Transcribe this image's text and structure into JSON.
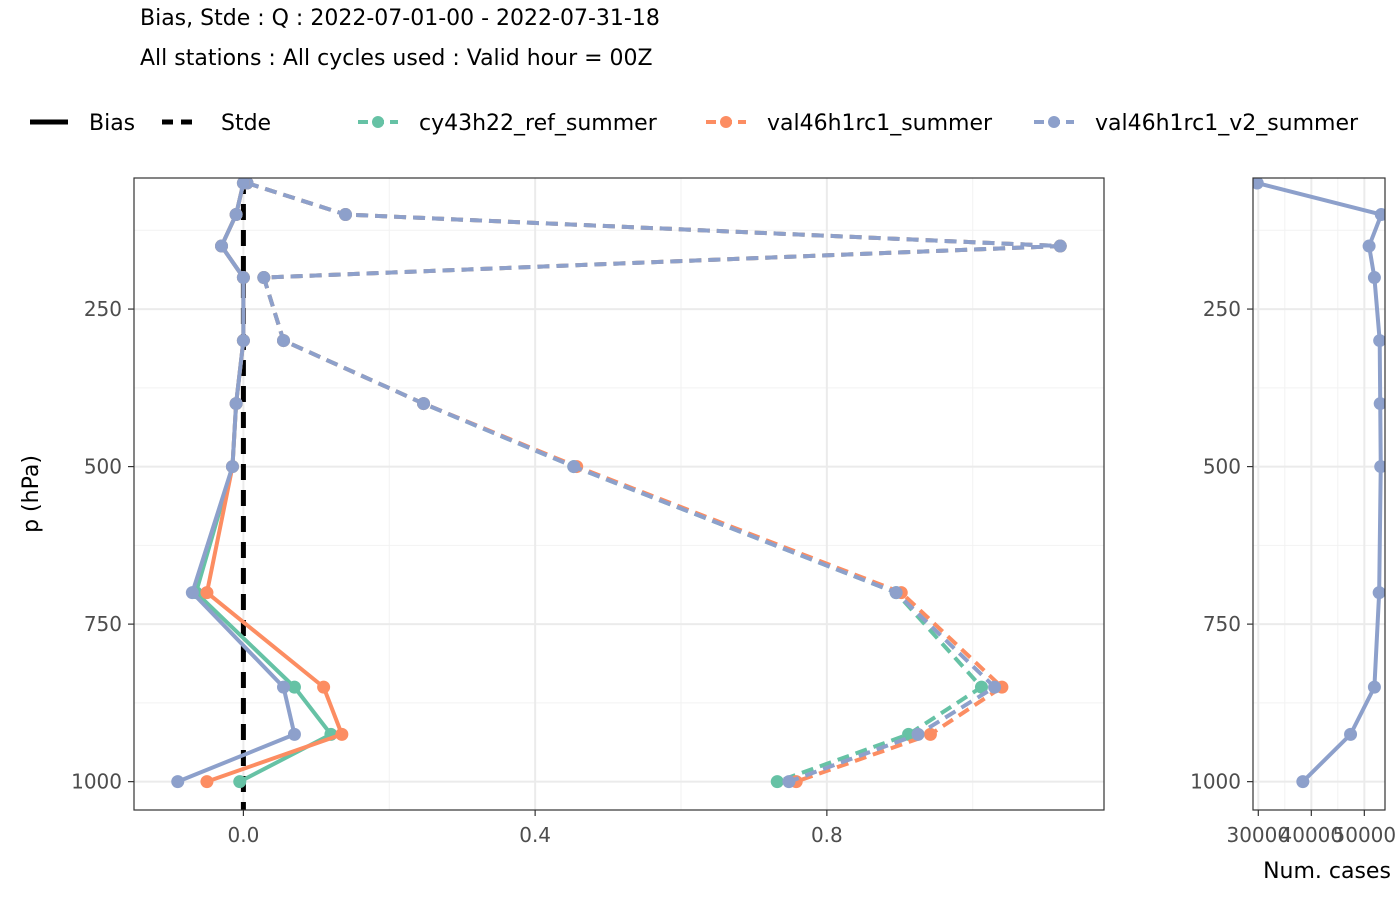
{
  "header": {
    "title_line1": "Bias, Stde : Q : 2022-07-01-00 - 2022-07-31-18",
    "title_line2": "All stations : All cycles used : Valid hour = 00Z"
  },
  "legend": {
    "linetypes": [
      {
        "label": "Bias",
        "style": "solid"
      },
      {
        "label": "Stde",
        "style": "dashed"
      }
    ],
    "experiments": [
      {
        "label": "cy43h22_ref_summer",
        "color": "#66c2a5"
      },
      {
        "label": "val46h1rc1_summer",
        "color": "#fc8d62"
      },
      {
        "label": "val46h1rc1_v2_summer",
        "color": "#8da0cb"
      }
    ]
  },
  "chart_data": [
    {
      "type": "line",
      "panel": "main",
      "ylabel": "p (hPa)",
      "xlabel": "",
      "y_reversed": true,
      "xlim": [
        -0.15,
        1.18
      ],
      "ylim": [
        1045,
        42
      ],
      "x_ticks": [
        {
          "value": 0.0,
          "label": "0.0"
        },
        {
          "value": 0.4,
          "label": "0.4"
        },
        {
          "value": 0.8,
          "label": "0.8"
        }
      ],
      "y_ticks": [
        {
          "value": 250,
          "label": "250"
        },
        {
          "value": 500,
          "label": "500"
        },
        {
          "value": 750,
          "label": "750"
        },
        {
          "value": 1000,
          "label": "1000"
        }
      ],
      "grid": true,
      "levels": [
        50,
        100,
        150,
        200,
        300,
        400,
        500,
        700,
        850,
        925,
        1000
      ],
      "series": [
        {
          "name": "cy43h22_ref_summer",
          "stat": "Bias",
          "color": "#66c2a5",
          "x": [
            0.0,
            -0.01,
            -0.03,
            0.0,
            0.0,
            -0.01,
            -0.015,
            -0.065,
            0.07,
            0.12,
            -0.005
          ]
        },
        {
          "name": "val46h1rc1_summer",
          "stat": "Bias",
          "color": "#fc8d62",
          "x": [
            0.0,
            -0.01,
            -0.03,
            0.0,
            0.0,
            -0.01,
            -0.015,
            -0.05,
            0.11,
            0.135,
            -0.05
          ]
        },
        {
          "name": "val46h1rc1_v2_summer",
          "stat": "Bias",
          "color": "#8da0cb",
          "x": [
            0.0,
            -0.01,
            -0.03,
            0.0,
            0.0,
            -0.01,
            -0.015,
            -0.07,
            0.055,
            0.07,
            -0.09
          ]
        },
        {
          "name": "cy43h22_ref_summer",
          "stat": "Stde",
          "color": "#66c2a5",
          "x": [
            0.005,
            0.14,
            1.12,
            0.028,
            0.055,
            0.247,
            0.453,
            0.895,
            1.012,
            0.912,
            0.732
          ]
        },
        {
          "name": "val46h1rc1_summer",
          "stat": "Stde",
          "color": "#fc8d62",
          "x": [
            0.005,
            0.14,
            1.12,
            0.028,
            0.055,
            0.247,
            0.457,
            0.902,
            1.04,
            0.942,
            0.758
          ]
        },
        {
          "name": "val46h1rc1_v2_summer",
          "stat": "Stde",
          "color": "#8da0cb",
          "x": [
            0.005,
            0.14,
            1.12,
            0.028,
            0.055,
            0.247,
            0.453,
            0.895,
            1.03,
            0.925,
            0.748
          ]
        }
      ]
    },
    {
      "type": "line",
      "panel": "num_cases",
      "xlabel": "Num. cases",
      "y_reversed": true,
      "xlim": [
        29000,
        53900
      ],
      "ylim": [
        1045,
        42
      ],
      "x_ticks": [
        {
          "value": 30000,
          "label": "30000"
        },
        {
          "value": 40000,
          "label": "40000"
        },
        {
          "value": 50000,
          "label": "50000"
        }
      ],
      "y_ticks": [
        {
          "value": 250,
          "label": "250"
        },
        {
          "value": 500,
          "label": "500"
        },
        {
          "value": 750,
          "label": "750"
        },
        {
          "value": 1000,
          "label": "1000"
        }
      ],
      "grid": true,
      "levels": [
        50,
        100,
        150,
        200,
        300,
        400,
        500,
        700,
        850,
        925,
        1000
      ],
      "series": [
        {
          "name": "val46h1rc1_v2_summer",
          "color": "#8da0cb",
          "x": [
            29800,
            53200,
            50900,
            51900,
            52900,
            53000,
            53100,
            52800,
            51900,
            47400,
            38400
          ]
        }
      ]
    }
  ]
}
